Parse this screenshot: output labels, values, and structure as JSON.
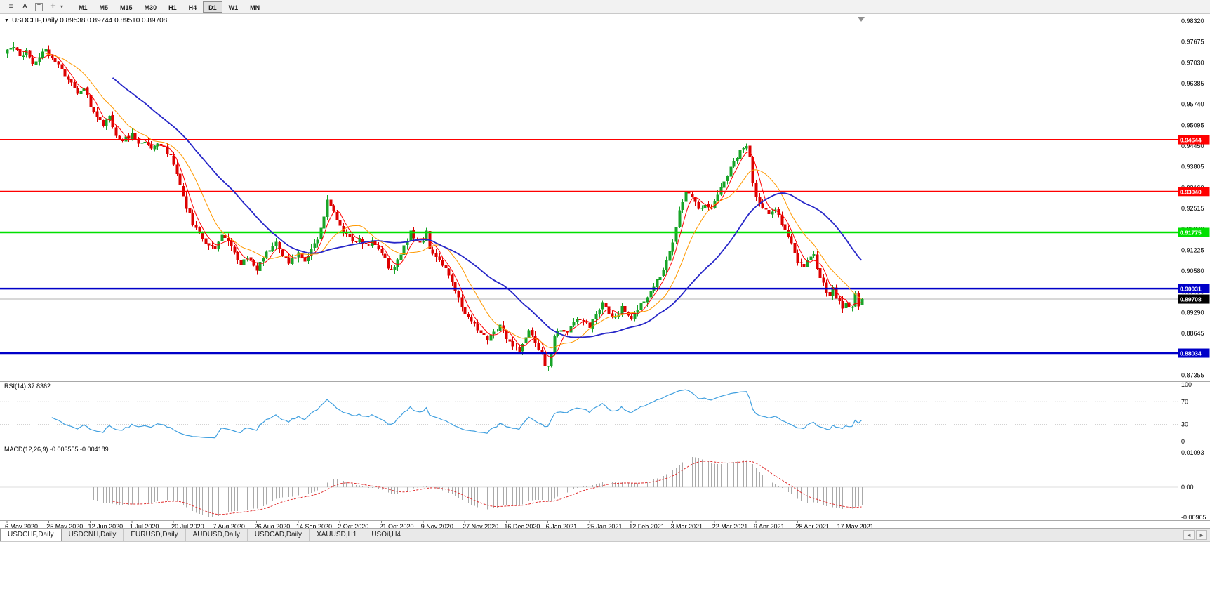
{
  "toolbar": {
    "icons": [
      {
        "name": "menu-icon",
        "glyph": "≡"
      },
      {
        "name": "text-tool-icon",
        "glyph": "A"
      },
      {
        "name": "label-tool-icon",
        "glyph": "T",
        "boxed": true
      },
      {
        "name": "crosshair-tool-icon",
        "glyph": "✛"
      }
    ],
    "dropdown_arrow": "▾",
    "timeframes": [
      "M1",
      "M5",
      "M15",
      "M30",
      "H1",
      "H4",
      "D1",
      "W1",
      "MN"
    ],
    "active_timeframe": "D1"
  },
  "chart_header": {
    "collapse_icon": "▼",
    "symbol": "USDCHF,Daily",
    "ohlc_text": "0.89538 0.89744 0.89510 0.89708"
  },
  "chart_data": {
    "type": "candlestick",
    "title": "USDCHF,Daily",
    "background": "#ffffff",
    "candles": 268,
    "candle_up_color": "#18a428",
    "candle_down_color": "#dd0000",
    "x_label_step": 13,
    "x_labels": [
      "6 May 2020",
      "25 May 2020",
      "12 Jun 2020",
      "1 Jul 2020",
      "20 Jul 2020",
      "7 Aug 2020",
      "26 Aug 2020",
      "14 Sep 2020",
      "2 Oct 2020",
      "21 Oct 2020",
      "9 Nov 2020",
      "27 Nov 2020",
      "16 Dec 2020",
      "6 Jan 2021",
      "25 Jan 2021",
      "12 Feb 2021",
      "3 Mar 2021",
      "22 Mar 2021",
      "9 Apr 2021",
      "28 Apr 2021",
      "17 May 2021"
    ],
    "y_axis_labels": [
      "0.98320",
      "0.97675",
      "0.97030",
      "0.96385",
      "0.95740",
      "0.95095",
      "0.94450",
      "0.93805",
      "0.93160",
      "0.92515",
      "0.91870",
      "0.91225",
      "0.90580",
      "0.89935",
      "0.89290",
      "0.88645",
      "0.88000",
      "0.87355"
    ],
    "price_anchors": [
      [
        0,
        0.9738
      ],
      [
        2,
        0.9755
      ],
      [
        4,
        0.9718
      ],
      [
        6,
        0.9745
      ],
      [
        8,
        0.9698
      ],
      [
        10,
        0.9725
      ],
      [
        12,
        0.9742
      ],
      [
        14,
        0.9716
      ],
      [
        16,
        0.9702
      ],
      [
        18,
        0.9665
      ],
      [
        20,
        0.9638
      ],
      [
        22,
        0.961
      ],
      [
        24,
        0.9626
      ],
      [
        26,
        0.9572
      ],
      [
        28,
        0.9538
      ],
      [
        30,
        0.9506
      ],
      [
        32,
        0.9542
      ],
      [
        34,
        0.9478
      ],
      [
        36,
        0.9462
      ],
      [
        39,
        0.948
      ],
      [
        41,
        0.945
      ],
      [
        43,
        0.9463
      ],
      [
        45,
        0.9438
      ],
      [
        47,
        0.9458
      ],
      [
        49,
        0.9442
      ],
      [
        51,
        0.9412
      ],
      [
        52,
        0.9386
      ],
      [
        54,
        0.9325
      ],
      [
        56,
        0.9255
      ],
      [
        58,
        0.9205
      ],
      [
        60,
        0.9175
      ],
      [
        62,
        0.9148
      ],
      [
        65,
        0.9128
      ],
      [
        67,
        0.9175
      ],
      [
        69,
        0.9152
      ],
      [
        71,
        0.9112
      ],
      [
        73,
        0.9082
      ],
      [
        75,
        0.9102
      ],
      [
        78,
        0.9065
      ],
      [
        80,
        0.9098
      ],
      [
        82,
        0.9125
      ],
      [
        84,
        0.9142
      ],
      [
        86,
        0.9102
      ],
      [
        88,
        0.9085
      ],
      [
        91,
        0.911
      ],
      [
        93,
        0.9092
      ],
      [
        95,
        0.9132
      ],
      [
        97,
        0.9158
      ],
      [
        99,
        0.9232
      ],
      [
        100,
        0.9272
      ],
      [
        101,
        0.926
      ],
      [
        103,
        0.9222
      ],
      [
        104,
        0.9202
      ],
      [
        106,
        0.9165
      ],
      [
        108,
        0.9148
      ],
      [
        110,
        0.916
      ],
      [
        112,
        0.9138
      ],
      [
        114,
        0.9148
      ],
      [
        116,
        0.9126
      ],
      [
        117,
        0.9115
      ],
      [
        119,
        0.9072
      ],
      [
        120,
        0.906
      ],
      [
        122,
        0.9092
      ],
      [
        124,
        0.9132
      ],
      [
        126,
        0.9178
      ],
      [
        128,
        0.9152
      ],
      [
        130,
        0.9148
      ],
      [
        131,
        0.9182
      ],
      [
        132,
        0.9128
      ],
      [
        134,
        0.9105
      ],
      [
        136,
        0.9078
      ],
      [
        138,
        0.9048
      ],
      [
        140,
        0.8998
      ],
      [
        142,
        0.8948
      ],
      [
        143,
        0.8918
      ],
      [
        145,
        0.8902
      ],
      [
        147,
        0.8878
      ],
      [
        149,
        0.8862
      ],
      [
        150,
        0.8848
      ],
      [
        152,
        0.8868
      ],
      [
        154,
        0.8888
      ],
      [
        156,
        0.8852
      ],
      [
        158,
        0.8828
      ],
      [
        160,
        0.8802
      ],
      [
        162,
        0.8848
      ],
      [
        163,
        0.8878
      ],
      [
        165,
        0.8832
      ],
      [
        167,
        0.8798
      ],
      [
        168,
        0.8768
      ],
      [
        169,
        0.8758
      ],
      [
        170,
        0.8808
      ],
      [
        171,
        0.8852
      ],
      [
        173,
        0.8878
      ],
      [
        175,
        0.8868
      ],
      [
        177,
        0.8902
      ],
      [
        179,
        0.8912
      ],
      [
        181,
        0.8892
      ],
      [
        182,
        0.8888
      ],
      [
        184,
        0.893
      ],
      [
        186,
        0.8958
      ],
      [
        188,
        0.8928
      ],
      [
        190,
        0.8912
      ],
      [
        192,
        0.8942
      ],
      [
        194,
        0.8922
      ],
      [
        195,
        0.891
      ],
      [
        197,
        0.8942
      ],
      [
        199,
        0.8965
      ],
      [
        201,
        0.8992
      ],
      [
        203,
        0.9028
      ],
      [
        205,
        0.9062
      ],
      [
        207,
        0.9118
      ],
      [
        208,
        0.9152
      ],
      [
        209,
        0.9198
      ],
      [
        210,
        0.9252
      ],
      [
        212,
        0.9302
      ],
      [
        214,
        0.9282
      ],
      [
        216,
        0.925
      ],
      [
        218,
        0.9265
      ],
      [
        220,
        0.9255
      ],
      [
        221,
        0.927
      ],
      [
        223,
        0.9318
      ],
      [
        225,
        0.9358
      ],
      [
        227,
        0.9395
      ],
      [
        229,
        0.9428
      ],
      [
        231,
        0.9452
      ],
      [
        232,
        0.9415
      ],
      [
        233,
        0.933
      ],
      [
        234,
        0.9282
      ],
      [
        236,
        0.9255
      ],
      [
        238,
        0.923
      ],
      [
        240,
        0.925
      ],
      [
        242,
        0.9202
      ],
      [
        244,
        0.9165
      ],
      [
        246,
        0.912
      ],
      [
        247,
        0.909
      ],
      [
        249,
        0.9076
      ],
      [
        251,
        0.9096
      ],
      [
        252,
        0.911
      ],
      [
        253,
        0.9065
      ],
      [
        254,
        0.903
      ],
      [
        255,
        0.9015
      ],
      [
        256,
        0.8992
      ],
      [
        257,
        0.898
      ],
      [
        258,
        0.9002
      ],
      [
        259,
        0.8975
      ],
      [
        260,
        0.896
      ],
      [
        261,
        0.8946
      ],
      [
        262,
        0.8966
      ],
      [
        263,
        0.8943
      ],
      [
        264,
        0.895
      ],
      [
        265,
        0.8986
      ],
      [
        266,
        0.8952
      ],
      [
        267,
        0.8971
      ]
    ],
    "last_candle": {
      "open": 0.89538,
      "high": 0.89744,
      "low": 0.8951,
      "close": 0.89708
    },
    "horizontal_lines": [
      {
        "price": 0.94644,
        "label": "0.94644",
        "color": "#ff0000",
        "width": 2
      },
      {
        "price": 0.9304,
        "label": "0.93040",
        "color": "#ff0000",
        "width": 2
      },
      {
        "price": 0.91775,
        "label": "0.91775",
        "color": "#00e000",
        "width": 2.5
      },
      {
        "price": 0.90031,
        "label": "0.90031",
        "color": "#0000c8",
        "width": 2.5
      },
      {
        "price": 0.88034,
        "label": "0.88034",
        "color": "#0000c8",
        "width": 2.5
      }
    ],
    "current_price": {
      "value": 0.89708,
      "label": "0.89708",
      "color": "#000000"
    },
    "moving_averages": [
      {
        "period": 5,
        "color": "#ff0000",
        "width": 1
      },
      {
        "period": 13,
        "color": "#ff9900",
        "width": 1
      },
      {
        "period": 34,
        "color": "#2626c8",
        "width": 1.8
      }
    ],
    "rsi": {
      "label": "RSI(14) 37.8362",
      "period": 14,
      "value": "37.8362",
      "axis_labels": [
        "100",
        "70",
        "30",
        "0"
      ],
      "axis_values": [
        100,
        70,
        30,
        0
      ],
      "levels": [
        70,
        30
      ],
      "color": "#3f9fdf"
    },
    "macd": {
      "label": "MACD(12,26,9) -0.003555 -0.004189",
      "values": [
        "-0.003555",
        "-0.004189"
      ],
      "axis_labels": [
        "0.01093",
        "0.00",
        "-0.00965"
      ],
      "axis_max": 0.01093,
      "axis_min": -0.00965,
      "histogram_color": "#aaaaaa",
      "signal_color": "#e03030"
    }
  },
  "tabs": {
    "items": [
      "USDCHF,Daily",
      "USDCNH,Daily",
      "EURUSD,Daily",
      "AUDUSD,Daily",
      "USDCAD,Daily",
      "XAUUSD,H1",
      "USOil,H4"
    ],
    "active": "USDCHF,Daily",
    "scroll_left": "◄",
    "scroll_right": "►"
  }
}
